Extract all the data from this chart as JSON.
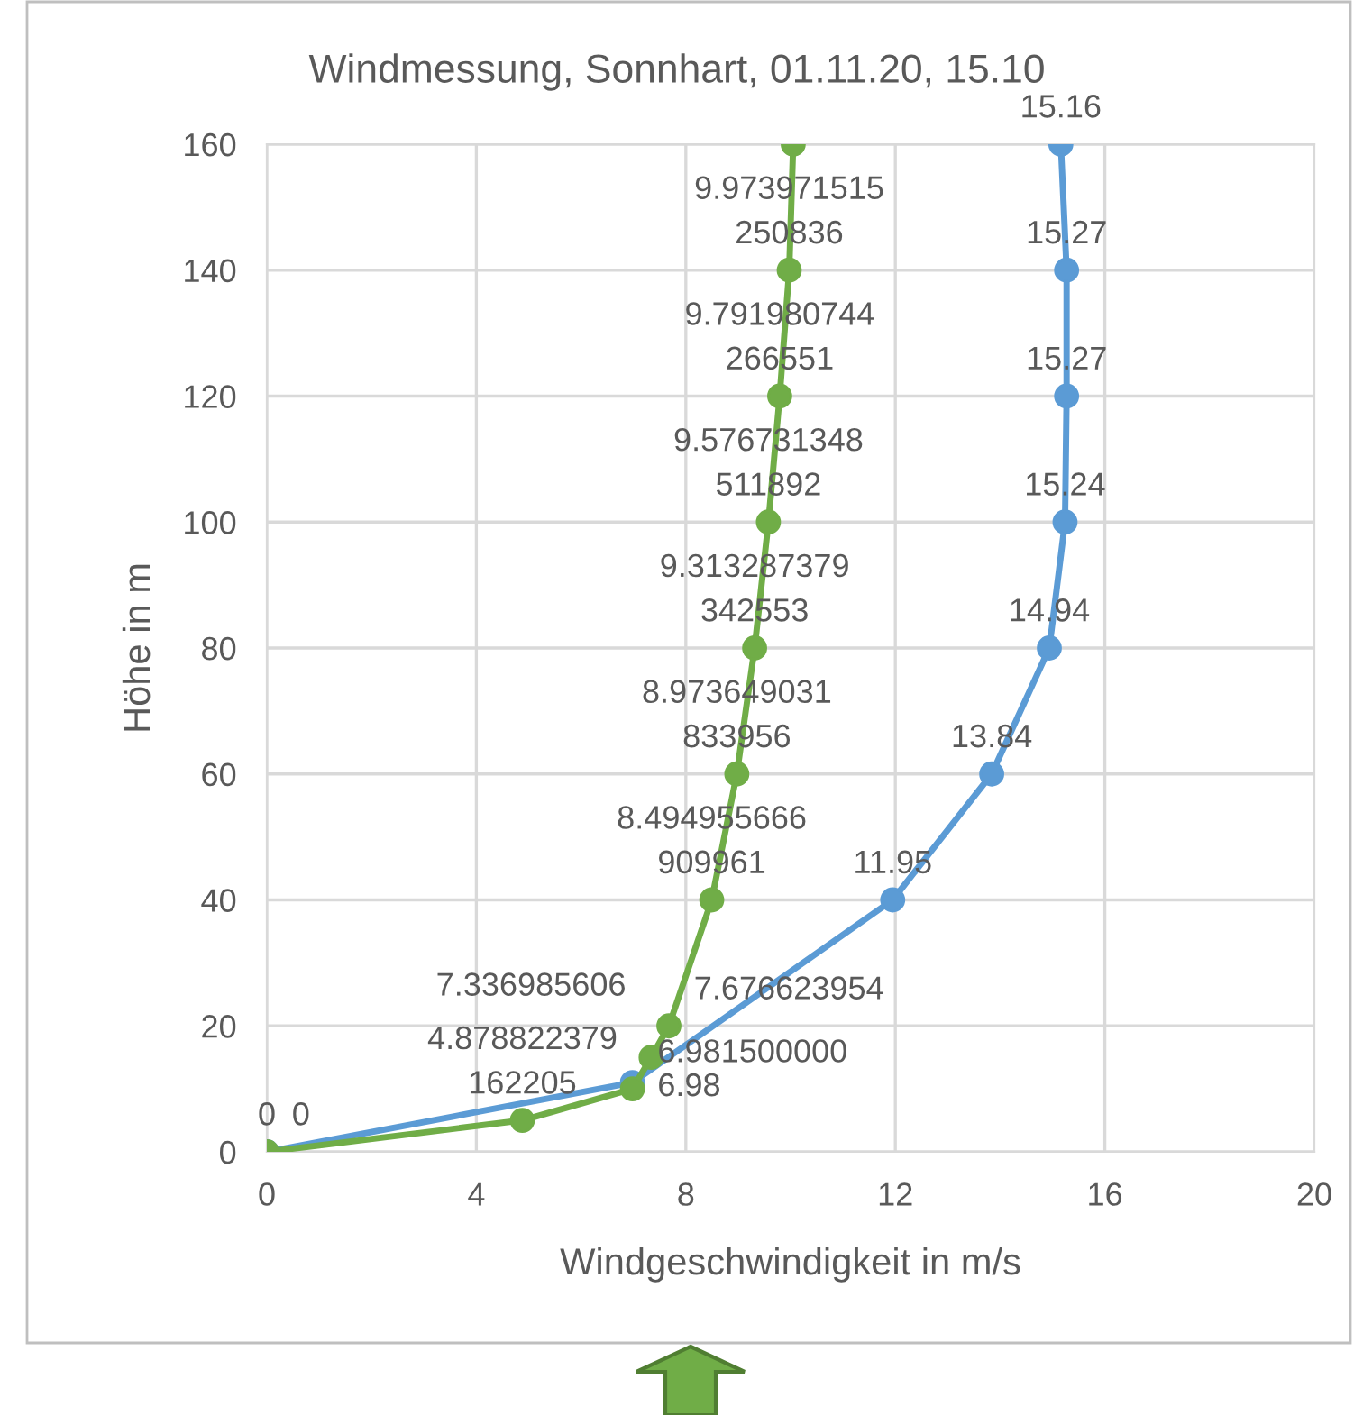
{
  "chart_data": {
    "type": "line",
    "title": "Windmessung, Sonnhart, 01.11.20, 15.10",
    "xlabel": "Windgeschwindigkeit in m/s",
    "ylabel": "Höhe in m",
    "xlim": [
      0,
      20
    ],
    "xticks": [
      0,
      4,
      8,
      12,
      16,
      20
    ],
    "ylim": [
      0,
      160
    ],
    "yticks": [
      0,
      20,
      40,
      60,
      80,
      100,
      120,
      140,
      160
    ],
    "grid": true,
    "marker": "circle",
    "line_style": "solid",
    "legend": false,
    "series": [
      {
        "color": "#70ad47",
        "x": [
          0,
          4.878822379162205,
          6.9815,
          7.336985606,
          7.676623954,
          8.494955666909961,
          8.973649031833956,
          9.313287379342553,
          9.576731348511892,
          9.791980744266551,
          9.973971515250836,
          10.05
        ],
        "values": [
          0,
          5,
          10,
          15,
          20,
          40,
          60,
          80,
          100,
          120,
          140,
          160
        ]
      },
      {
        "color": "#5b9bd5",
        "x": [
          0,
          6.98,
          11.95,
          13.84,
          14.94,
          15.24,
          15.27,
          15.27,
          15.16
        ],
        "values": [
          0,
          11,
          40,
          60,
          80,
          100,
          120,
          140,
          160
        ]
      }
    ],
    "annotations": [
      {
        "text": "0",
        "x": 0,
        "y": 0
      },
      {
        "text": "4.878822379162205",
        "x": 4.878822379162205,
        "y": 5
      },
      {
        "text": "6.981500000",
        "x": 6.9815,
        "y": 10
      },
      {
        "text": "7.336985606",
        "x": 7.336985606,
        "y": 15
      },
      {
        "text": "7.676623954",
        "x": 7.676623954,
        "y": 20
      },
      {
        "text": "8.494955666909961",
        "x": 8.494955666909961,
        "y": 40
      },
      {
        "text": "8.973649031833956",
        "x": 8.973649031833956,
        "y": 60
      },
      {
        "text": "9.313287379342553",
        "x": 9.313287379342553,
        "y": 80
      },
      {
        "text": "9.576731348511892",
        "x": 9.576731348511892,
        "y": 100
      },
      {
        "text": "9.791980744266551",
        "x": 9.791980744266551,
        "y": 120
      },
      {
        "text": "9.973971515250836",
        "x": 9.973971515250836,
        "y": 140
      },
      {
        "text": "0",
        "x": 0,
        "y": 0
      },
      {
        "text": "6.98",
        "x": 6.98,
        "y": 11
      },
      {
        "text": "11.95",
        "x": 11.95,
        "y": 40
      },
      {
        "text": "13.84",
        "x": 13.84,
        "y": 60
      },
      {
        "text": "14.94",
        "x": 14.94,
        "y": 80
      },
      {
        "text": "15.24",
        "x": 15.24,
        "y": 100
      },
      {
        "text": "15.27",
        "x": 15.27,
        "y": 120
      },
      {
        "text": "15.27",
        "x": 15.27,
        "y": 140
      },
      {
        "text": "15.16",
        "x": 15.16,
        "y": 160
      }
    ]
  }
}
